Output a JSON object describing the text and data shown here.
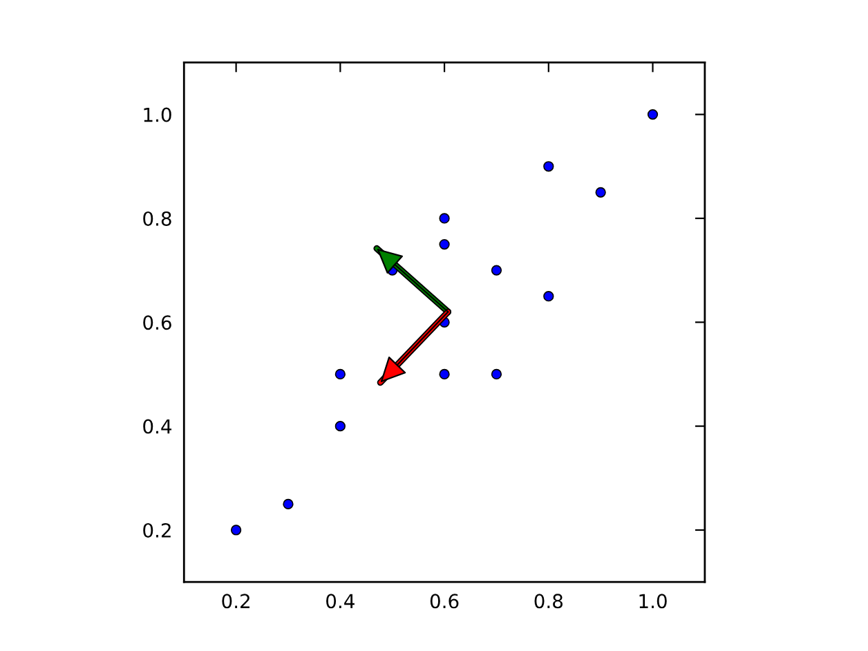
{
  "chart_data": {
    "type": "scatter",
    "series": [
      {
        "color": "#0000ff",
        "marker": "circle",
        "x": [
          0.2,
          0.3,
          0.4,
          0.4,
          0.5,
          0.6,
          0.6,
          0.6,
          0.6,
          0.7,
          0.7,
          0.8,
          0.8,
          0.9,
          1.0
        ],
        "values": [
          0.2,
          0.25,
          0.4,
          0.5,
          0.7,
          0.5,
          0.6,
          0.75,
          0.8,
          0.5,
          0.7,
          0.65,
          0.9,
          0.85,
          1.0
        ]
      },
      {
        "type": "line",
        "color": "#008000",
        "x": [
          0.607,
          0.47
        ],
        "values": [
          0.62,
          0.742
        ]
      },
      {
        "type": "line",
        "color": "#ff0000",
        "x": [
          0.607,
          0.477
        ],
        "values": [
          0.62,
          0.484
        ]
      }
    ],
    "xlim": [
      0.1,
      1.1
    ],
    "ylim": [
      0.1,
      1.1
    ],
    "xticks": [
      0.2,
      0.4,
      0.6,
      0.8,
      {
        "value": 1.0,
        "label": "1.0"
      }
    ],
    "yticks": [
      0.2,
      0.4,
      0.6,
      0.8,
      {
        "value": 1.0,
        "label": "1.0"
      }
    ]
  }
}
